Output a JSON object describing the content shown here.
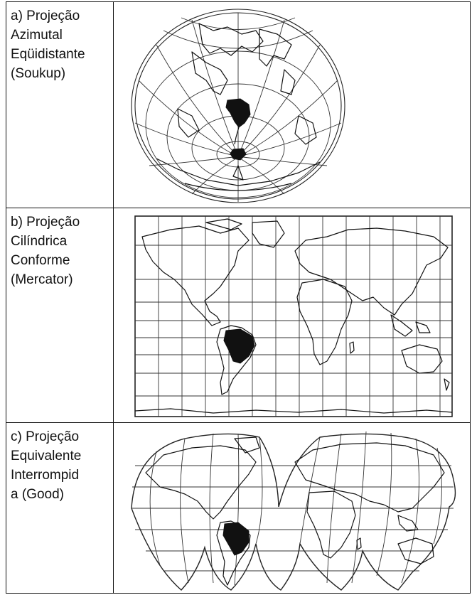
{
  "projections": [
    {
      "id": "a",
      "label": "a) Projeção\nAzimutal\nEqüidistante\n(Soukup)"
    },
    {
      "id": "b",
      "label": "b) Projeção\nCilíndrica\nConforme\n(Mercator)"
    },
    {
      "id": "c",
      "label": "c) Projeção\nEquivalente\nInterrompid\na (Good)"
    }
  ],
  "colors": {
    "border": "#111111",
    "lines": "#222222",
    "brazil_fill": "#111111"
  },
  "icons": [
    "azimuthal-map",
    "mercator-map",
    "goode-map"
  ]
}
